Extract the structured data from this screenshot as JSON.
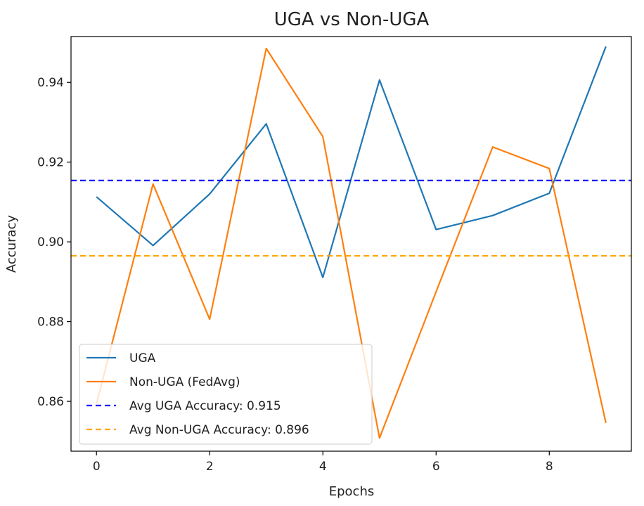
{
  "chart_data": {
    "type": "line",
    "title": "UGA vs Non-UGA",
    "xlabel": "Epochs",
    "ylabel": "Accuracy",
    "xlim": [
      -0.45,
      9.45
    ],
    "ylim": [
      0.8475,
      0.9515
    ],
    "x": [
      0,
      1,
      2,
      3,
      4,
      5,
      6,
      7,
      8,
      9
    ],
    "xticks": [
      0,
      2,
      4,
      6,
      8
    ],
    "yticks": [
      0.86,
      0.88,
      0.9,
      0.92,
      0.94
    ],
    "ytick_labels": [
      "0.86",
      "0.88",
      "0.90",
      "0.92",
      "0.94"
    ],
    "series": [
      {
        "name": "UGA",
        "color": "#1f77b4",
        "style": "solid",
        "values": [
          0.9113,
          0.8991,
          0.912,
          0.9296,
          0.8911,
          0.9406,
          0.9031,
          0.9066,
          0.9122,
          0.949
        ]
      },
      {
        "name": "Non-UGA (FedAvg)",
        "color": "#ff7f0e",
        "style": "solid",
        "values": [
          0.8594,
          0.9145,
          0.8806,
          0.9485,
          0.9264,
          0.8508,
          0.8875,
          0.9238,
          0.9184,
          0.8546
        ]
      }
    ],
    "hlines": [
      {
        "name": "Avg UGA Accuracy: 0.915",
        "value": 0.9154,
        "color": "#0000ff",
        "style": "dashed"
      },
      {
        "name": "Avg Non-UGA Accuracy: 0.896",
        "value": 0.8965,
        "color": "#ffa500",
        "style": "dashed"
      }
    ],
    "legend_position": "lower-left",
    "grid": false
  }
}
